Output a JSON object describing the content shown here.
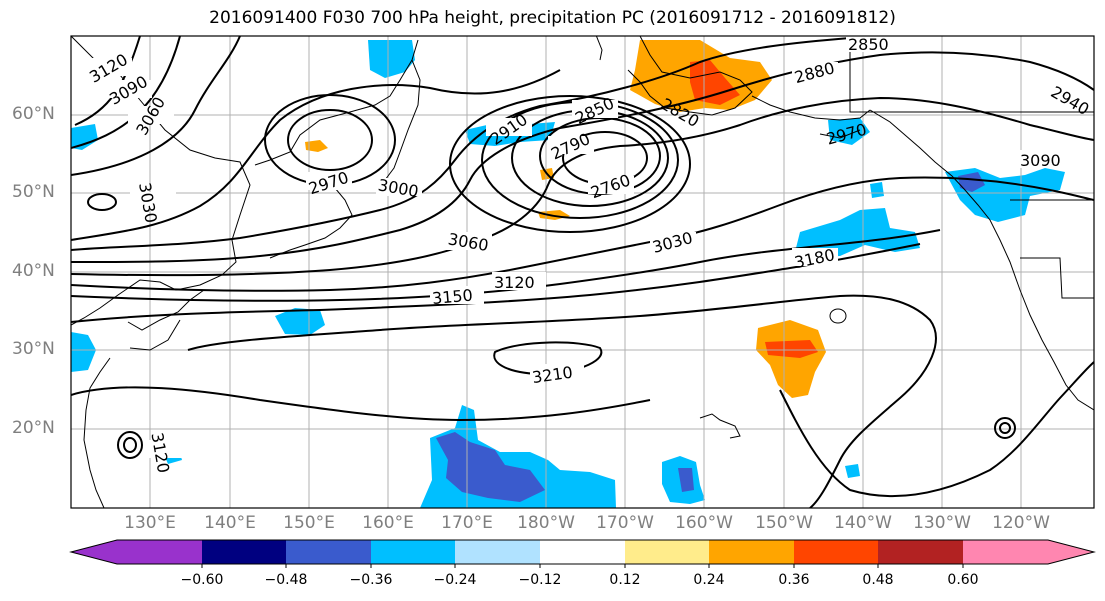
{
  "title": "2016091400 F030 700 hPa height, precipitation PC (2016091712 - 2016091812)",
  "latitude_labels": [
    "60°N",
    "50°N",
    "40°N",
    "30°N",
    "20°N"
  ],
  "longitude_labels": [
    "130°E",
    "140°E",
    "150°E",
    "160°E",
    "170°E",
    "180°W",
    "170°W",
    "160°W",
    "150°W",
    "140°W",
    "130°W",
    "120°W"
  ],
  "contour_labels": [
    "3120",
    "3090",
    "3060",
    "3030",
    "2970",
    "3000",
    "2910",
    "2850",
    "2790",
    "2760",
    "2820",
    "2880",
    "2850",
    "2940",
    "2970",
    "3090",
    "3060",
    "3030",
    "3180",
    "3120",
    "3150",
    "3210",
    "3120"
  ],
  "colorbar": {
    "tick_labels": [
      "−0.60",
      "−0.48",
      "−0.36",
      "−0.24",
      "−0.12",
      "0.12",
      "0.24",
      "0.36",
      "0.48",
      "0.60"
    ],
    "colors": [
      "#9932cc",
      "#000080",
      "#3a5bcd",
      "#00bfff",
      "#b0e2ff",
      "#ffffff",
      "#ffec8b",
      "#ffa500",
      "#ff4500",
      "#b22222",
      "#ff86b0"
    ]
  }
}
